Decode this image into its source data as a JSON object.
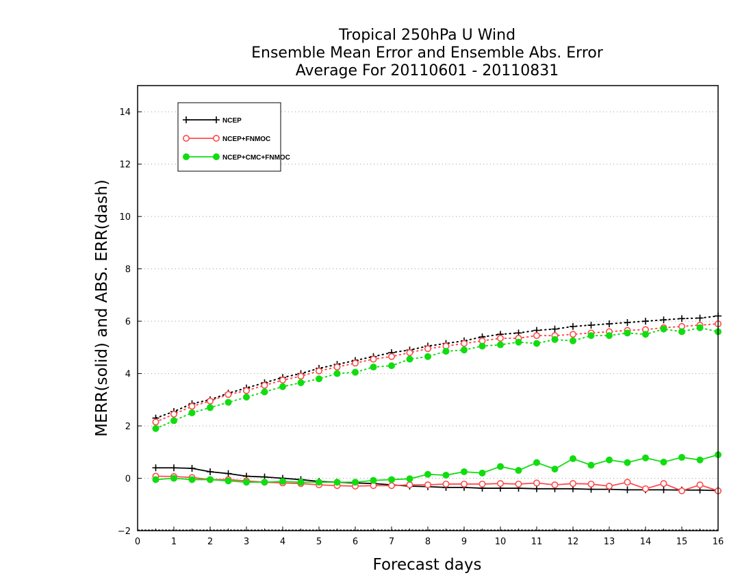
{
  "chart_data": {
    "type": "line",
    "title_lines": [
      "Tropical 250hPa U Wind",
      "Ensemble Mean Error and Ensemble Abs. Error",
      "Average For 20110601 - 20110831"
    ],
    "xlabel": "Forecast days",
    "ylabel": "MERR(solid) and ABS. ERR(dash)",
    "xlim": [
      0,
      16
    ],
    "ylim": [
      -2,
      15
    ],
    "xticks": [
      0,
      1,
      2,
      3,
      4,
      5,
      6,
      7,
      8,
      9,
      10,
      11,
      12,
      13,
      14,
      15,
      16
    ],
    "yticks": [
      -2,
      0,
      2,
      4,
      6,
      8,
      10,
      12,
      14
    ],
    "grid": "horizontal dotted at even y",
    "legend_position": "top-left",
    "x": [
      0.5,
      1,
      1.5,
      2,
      2.5,
      3,
      3.5,
      4,
      4.5,
      5,
      5.5,
      6,
      6.5,
      7,
      7.5,
      8,
      8.5,
      9,
      9.5,
      10,
      10.5,
      11,
      11.5,
      12,
      12.5,
      13,
      13.5,
      14,
      14.5,
      15,
      15.5,
      16
    ],
    "series": [
      {
        "name": "NCEP",
        "color": "#000000",
        "marker": "plus",
        "merr": [
          0.4,
          0.4,
          0.38,
          0.25,
          0.18,
          0.08,
          0.05,
          0.0,
          -0.05,
          -0.12,
          -0.15,
          -0.18,
          -0.2,
          -0.25,
          -0.3,
          -0.32,
          -0.35,
          -0.35,
          -0.38,
          -0.38,
          -0.38,
          -0.4,
          -0.4,
          -0.4,
          -0.42,
          -0.42,
          -0.44,
          -0.44,
          -0.44,
          -0.45,
          -0.45,
          -0.47
        ],
        "abs_err": [
          2.3,
          2.55,
          2.85,
          3.0,
          3.25,
          3.45,
          3.65,
          3.85,
          4.0,
          4.2,
          4.35,
          4.5,
          4.65,
          4.8,
          4.9,
          5.05,
          5.15,
          5.25,
          5.4,
          5.5,
          5.55,
          5.65,
          5.7,
          5.8,
          5.85,
          5.9,
          5.95,
          6.0,
          6.05,
          6.1,
          6.12,
          6.2
        ]
      },
      {
        "name": "NCEP+FNMOC",
        "color": "#ff4a4a",
        "marker": "open-circle",
        "merr": [
          0.08,
          0.07,
          0.03,
          -0.05,
          -0.05,
          -0.1,
          -0.15,
          -0.18,
          -0.2,
          -0.25,
          -0.28,
          -0.3,
          -0.28,
          -0.28,
          -0.25,
          -0.25,
          -0.22,
          -0.22,
          -0.22,
          -0.2,
          -0.22,
          -0.18,
          -0.25,
          -0.2,
          -0.22,
          -0.3,
          -0.15,
          -0.4,
          -0.2,
          -0.48,
          -0.25,
          -0.48
        ],
        "abs_err": [
          2.15,
          2.45,
          2.75,
          2.95,
          3.2,
          3.35,
          3.55,
          3.75,
          3.9,
          4.1,
          4.25,
          4.4,
          4.55,
          4.65,
          4.8,
          4.95,
          5.05,
          5.15,
          5.25,
          5.35,
          5.35,
          5.45,
          5.45,
          5.5,
          5.55,
          5.6,
          5.65,
          5.68,
          5.75,
          5.8,
          5.85,
          5.9
        ]
      },
      {
        "name": "NCEP+CMC+FNMOC",
        "color": "#10dd10",
        "marker": "filled-circle",
        "merr": [
          -0.05,
          0.0,
          -0.05,
          -0.05,
          -0.1,
          -0.15,
          -0.15,
          -0.12,
          -0.15,
          -0.15,
          -0.15,
          -0.15,
          -0.08,
          -0.05,
          -0.02,
          0.15,
          0.12,
          0.25,
          0.2,
          0.45,
          0.3,
          0.6,
          0.35,
          0.75,
          0.5,
          0.7,
          0.6,
          0.78,
          0.62,
          0.8,
          0.7,
          0.9
        ],
        "abs_err": [
          1.9,
          2.2,
          2.5,
          2.7,
          2.9,
          3.1,
          3.3,
          3.5,
          3.65,
          3.8,
          4.0,
          4.05,
          4.25,
          4.3,
          4.55,
          4.65,
          4.85,
          4.9,
          5.05,
          5.1,
          5.2,
          5.15,
          5.3,
          5.25,
          5.45,
          5.45,
          5.55,
          5.5,
          5.7,
          5.6,
          5.75,
          5.6
        ]
      }
    ]
  }
}
